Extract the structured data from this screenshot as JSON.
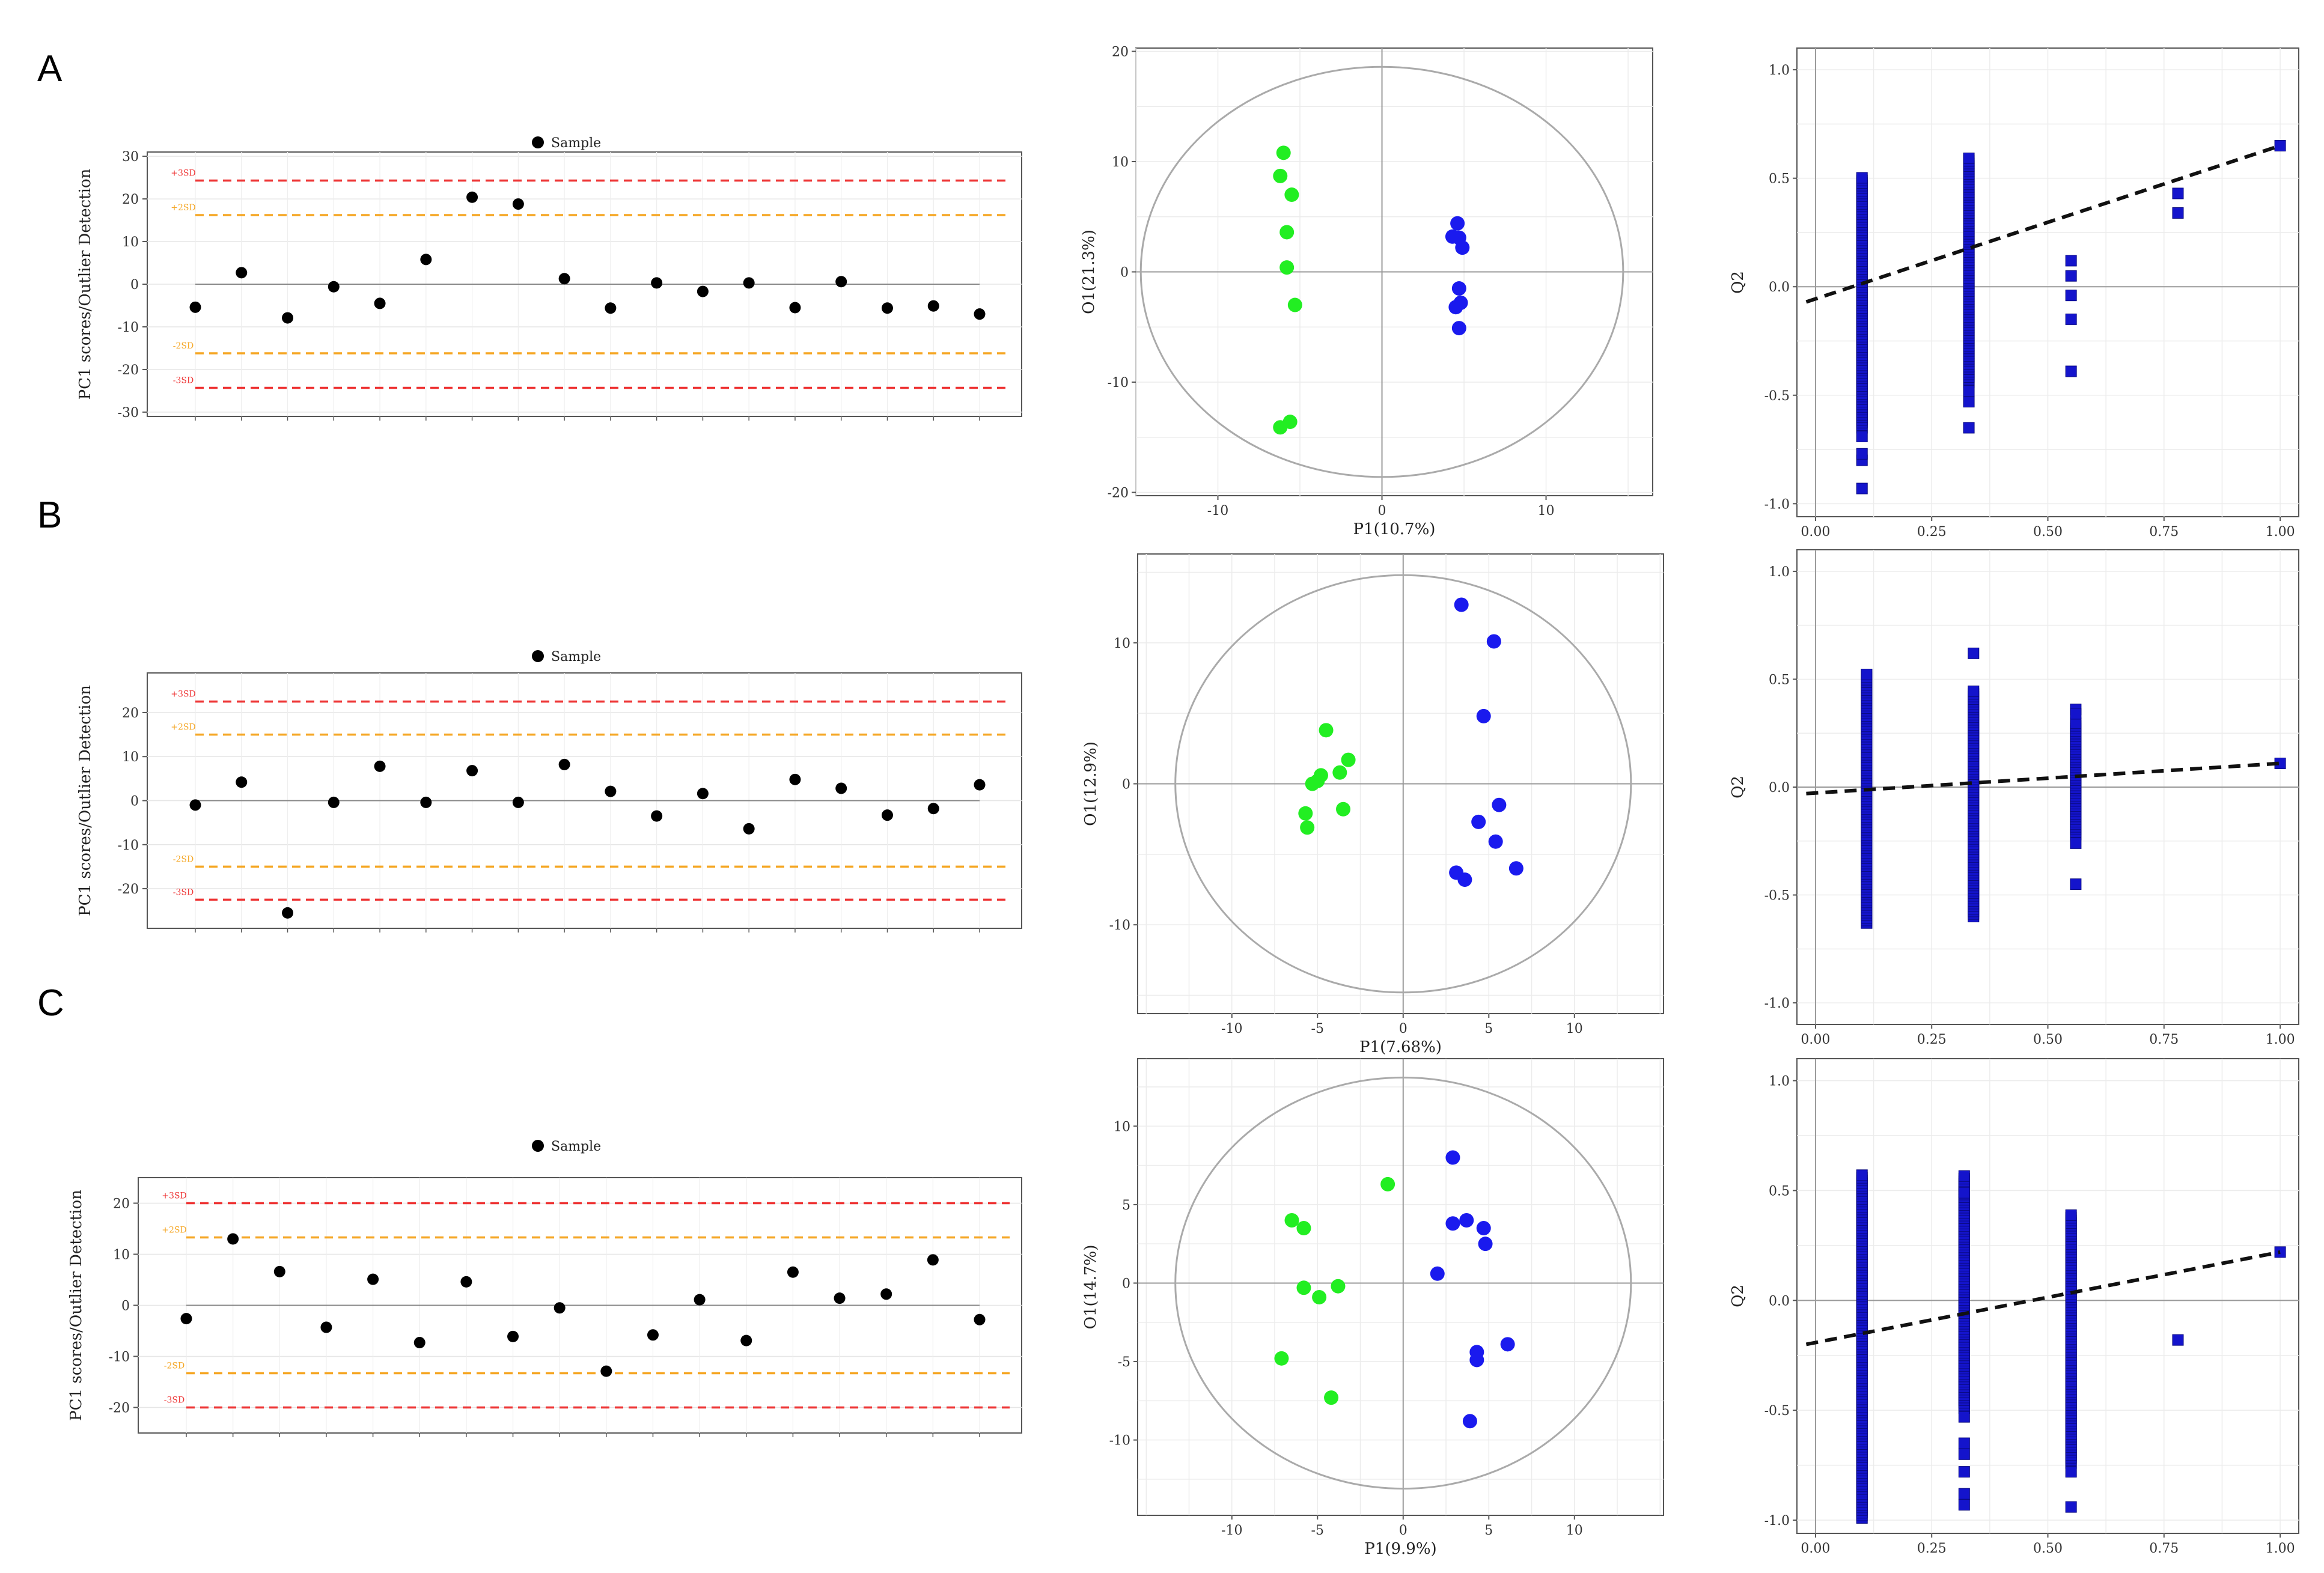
{
  "panels": [
    {
      "label": "A"
    },
    {
      "label": "B"
    },
    {
      "label": "C"
    }
  ],
  "colors": {
    "sd3": "#ee3333",
    "sd2": "#f5a623",
    "sample": "#000000",
    "group1": "#22ee22",
    "group2": "#1a1aee",
    "q2": "#1414cc"
  },
  "chart_data": [
    {
      "type": "scatter",
      "panel": "A",
      "plot": "outlier",
      "legend": "Sample",
      "ylabel": "PC1 scores/Outlier Detection",
      "ylim": [
        -31,
        31
      ],
      "yticks": [
        -30,
        -20,
        -10,
        0,
        10,
        20,
        30
      ],
      "sd_lines": [
        {
          "label": "+3SD",
          "value": 24.3
        },
        {
          "label": "+2SD",
          "value": 16.2
        },
        {
          "label": "-2SD",
          "value": -16.2
        },
        {
          "label": "-3SD",
          "value": -24.3
        }
      ],
      "values": [
        -5.4,
        2.7,
        -7.9,
        -0.6,
        -4.5,
        5.8,
        20.4,
        18.8,
        1.3,
        -5.6,
        0.3,
        -1.7,
        0.3,
        -5.5,
        0.6,
        -5.6,
        -5.1,
        -7.0
      ]
    },
    {
      "type": "scatter",
      "panel": "A",
      "plot": "score",
      "xlabel": "P1(10.7%)",
      "ylabel": "O1(21.3%)",
      "xlim": [
        -15,
        16.5
      ],
      "ylim": [
        -20.3,
        20.3
      ],
      "xticks": [
        -10,
        0,
        10
      ],
      "yticks": [
        -20,
        -10,
        0,
        10,
        20
      ],
      "ellipse": {
        "rx": 14.7,
        "ry": 18.6
      },
      "series": [
        {
          "color": "group1",
          "points": [
            [
              -6.0,
              10.8
            ],
            [
              -6.2,
              8.7
            ],
            [
              -5.5,
              7.0
            ],
            [
              -5.8,
              3.6
            ],
            [
              -5.8,
              0.4
            ],
            [
              -5.3,
              -3.0
            ],
            [
              -5.6,
              -13.6
            ],
            [
              -6.2,
              -14.1
            ]
          ]
        },
        {
          "color": "group2",
          "points": [
            [
              4.6,
              4.4
            ],
            [
              4.3,
              3.2
            ],
            [
              4.7,
              3.1
            ],
            [
              4.9,
              2.2
            ],
            [
              4.7,
              -1.5
            ],
            [
              4.5,
              -3.2
            ],
            [
              4.8,
              -2.8
            ],
            [
              4.7,
              -5.1
            ]
          ]
        }
      ]
    },
    {
      "type": "scatter",
      "panel": "A",
      "plot": "permutation",
      "ylabel": "Q2",
      "xlim": [
        -0.04,
        1.04
      ],
      "ylim": [
        -1.06,
        1.1
      ],
      "xticks": [
        "0.00",
        "0.25",
        "0.50",
        "0.75",
        "1.00"
      ],
      "yticks": [
        "-1.0",
        "-0.5",
        "0.0",
        "0.5",
        "1.0"
      ],
      "fit_line": [
        [
          -0.02,
          -0.07
        ],
        [
          1.0,
          0.65
        ]
      ],
      "columns": [
        {
          "x": 0.1,
          "min": -0.93,
          "max": 0.51,
          "outliers": [
            -0.93,
            -0.8,
            -0.77,
            -0.69
          ]
        },
        {
          "x": 0.33,
          "min": -0.65,
          "max": 0.6,
          "outliers": [
            -0.65,
            -0.53,
            -0.48
          ]
        },
        {
          "x": 0.55,
          "min": -0.4,
          "max": 0.63,
          "outliers": [
            -0.39,
            -0.15,
            -0.04,
            0.05,
            0.12
          ]
        }
      ],
      "points": [
        [
          0.78,
          0.43
        ],
        [
          0.78,
          0.34
        ],
        [
          1.0,
          0.65
        ]
      ]
    },
    {
      "type": "scatter",
      "panel": "B",
      "plot": "outlier",
      "legend": "Sample",
      "ylabel": "PC1 scores/Outlier Detection",
      "ylim": [
        -29,
        29
      ],
      "yticks": [
        -20,
        -10,
        0,
        10,
        20
      ],
      "sd_lines": [
        {
          "label": "+3SD",
          "value": 22.5
        },
        {
          "label": "+2SD",
          "value": 15.0
        },
        {
          "label": "-2SD",
          "value": -15.0
        },
        {
          "label": "-3SD",
          "value": -22.5
        }
      ],
      "values": [
        -1.0,
        4.2,
        -25.5,
        -0.4,
        7.8,
        -0.4,
        6.8,
        -0.4,
        8.2,
        2.1,
        -3.5,
        1.6,
        -6.4,
        4.8,
        2.8,
        -3.3,
        -1.8,
        3.6
      ]
    },
    {
      "type": "scatter",
      "panel": "B",
      "plot": "score",
      "xlabel": "P1(7.68%)",
      "ylabel": "O1(12.9%)",
      "xlim": [
        -15.5,
        15.2
      ],
      "ylim": [
        -16.3,
        16.3
      ],
      "xticks": [
        -10,
        -5,
        0,
        5,
        10
      ],
      "yticks": [
        -10,
        0,
        10
      ],
      "ellipse": {
        "rx": 13.3,
        "ry": 14.8
      },
      "series": [
        {
          "color": "group1",
          "points": [
            [
              -4.5,
              3.8
            ],
            [
              -3.2,
              1.7
            ],
            [
              -3.7,
              0.8
            ],
            [
              -4.8,
              0.6
            ],
            [
              -5.0,
              0.2
            ],
            [
              -5.3,
              0.0
            ],
            [
              -3.5,
              -1.8
            ],
            [
              -5.7,
              -2.1
            ],
            [
              -5.6,
              -3.1
            ]
          ]
        },
        {
          "color": "group2",
          "points": [
            [
              3.4,
              12.7
            ],
            [
              5.3,
              10.1
            ],
            [
              4.7,
              4.8
            ],
            [
              5.6,
              -1.5
            ],
            [
              4.4,
              -2.7
            ],
            [
              5.4,
              -4.1
            ],
            [
              6.6,
              -6.0
            ],
            [
              3.1,
              -6.3
            ],
            [
              3.6,
              -6.8
            ]
          ]
        }
      ]
    },
    {
      "type": "scatter",
      "panel": "B",
      "plot": "permutation",
      "ylabel": "Q2",
      "xlim": [
        -0.04,
        1.04
      ],
      "ylim": [
        -1.1,
        1.1
      ],
      "xticks": [
        "0.00",
        "0.25",
        "0.50",
        "0.75",
        "1.00"
      ],
      "yticks": [
        "-1.0",
        "-0.5",
        "0.0",
        "0.5",
        "1.0"
      ],
      "fit_line": [
        [
          -0.02,
          -0.03
        ],
        [
          1.0,
          0.11
        ]
      ],
      "columns": [
        {
          "x": 0.11,
          "min": -0.63,
          "max": 0.53,
          "outliers": []
        },
        {
          "x": 0.34,
          "min": -0.6,
          "max": 0.45,
          "outliers": [
            0.62
          ]
        },
        {
          "x": 0.56,
          "min": 0.0,
          "max": 0.36,
          "outliers": [
            0.36,
            0.34,
            -0.26,
            -0.45
          ]
        }
      ],
      "points": [
        [
          1.0,
          0.11
        ]
      ]
    },
    {
      "type": "scatter",
      "panel": "C",
      "plot": "outlier",
      "legend": "Sample",
      "ylabel": "PC1 scores/Outlier Detection",
      "ylim": [
        -25,
        25
      ],
      "yticks": [
        -20,
        -10,
        0,
        10,
        20
      ],
      "sd_lines": [
        {
          "label": "+3SD",
          "value": 20.0
        },
        {
          "label": "+2SD",
          "value": 13.3
        },
        {
          "label": "-2SD",
          "value": -13.3
        },
        {
          "label": "-3SD",
          "value": -20.0
        }
      ],
      "values": [
        -2.6,
        13.0,
        6.6,
        -4.3,
        5.1,
        -7.3,
        4.6,
        -6.1,
        -0.5,
        -12.9,
        -5.8,
        1.1,
        -6.9,
        6.5,
        1.4,
        2.2,
        8.9,
        -2.8
      ]
    },
    {
      "type": "scatter",
      "panel": "C",
      "plot": "score",
      "xlabel": "P1(9.9%)",
      "ylabel": "O1(14.7%)",
      "xlim": [
        -15.5,
        15.2
      ],
      "ylim": [
        -14.8,
        14.3
      ],
      "xticks": [
        -10,
        -5,
        0,
        5,
        10
      ],
      "yticks": [
        -10,
        -5,
        0,
        5,
        10
      ],
      "ellipse": {
        "rx": 13.3,
        "ry": 13.1
      },
      "series": [
        {
          "color": "group1",
          "points": [
            [
              -0.9,
              6.3
            ],
            [
              -6.5,
              4.0
            ],
            [
              -5.8,
              3.5
            ],
            [
              -5.8,
              -0.3
            ],
            [
              -3.8,
              -0.2
            ],
            [
              -4.9,
              -0.9
            ],
            [
              -7.1,
              -4.8
            ],
            [
              -4.2,
              -7.3
            ]
          ]
        },
        {
          "color": "group2",
          "points": [
            [
              2.9,
              8.0
            ],
            [
              2.9,
              3.8
            ],
            [
              3.7,
              4.0
            ],
            [
              4.7,
              3.5
            ],
            [
              4.8,
              2.5
            ],
            [
              2.0,
              0.6
            ],
            [
              6.1,
              -3.9
            ],
            [
              4.3,
              -4.4
            ],
            [
              4.3,
              -4.9
            ],
            [
              3.9,
              -8.8
            ]
          ]
        }
      ]
    },
    {
      "type": "scatter",
      "panel": "C",
      "plot": "permutation",
      "ylabel": "Q2",
      "xlim": [
        -0.04,
        1.04
      ],
      "ylim": [
        -1.06,
        1.1
      ],
      "xticks": [
        "0.00",
        "0.25",
        "0.50",
        "0.75",
        "1.00"
      ],
      "yticks": [
        "-1.0",
        "-0.5",
        "0.0",
        "0.5",
        "1.0"
      ],
      "fit_line": [
        [
          -0.02,
          -0.2
        ],
        [
          1.0,
          0.22
        ]
      ],
      "columns": [
        {
          "x": 0.1,
          "min": -0.99,
          "max": 0.58,
          "outliers": []
        },
        {
          "x": 0.32,
          "min": -0.93,
          "max": 0.57,
          "outliers": [
            -0.93,
            -0.88,
            -0.78,
            -0.7,
            -0.65,
            -0.53,
            0.49
          ]
        },
        {
          "x": 0.55,
          "min": -0.5,
          "max": 0.39,
          "outliers": [
            -0.78,
            -0.94
          ]
        }
      ],
      "points": [
        [
          0.78,
          -0.18
        ],
        [
          1.0,
          0.22
        ]
      ]
    }
  ]
}
